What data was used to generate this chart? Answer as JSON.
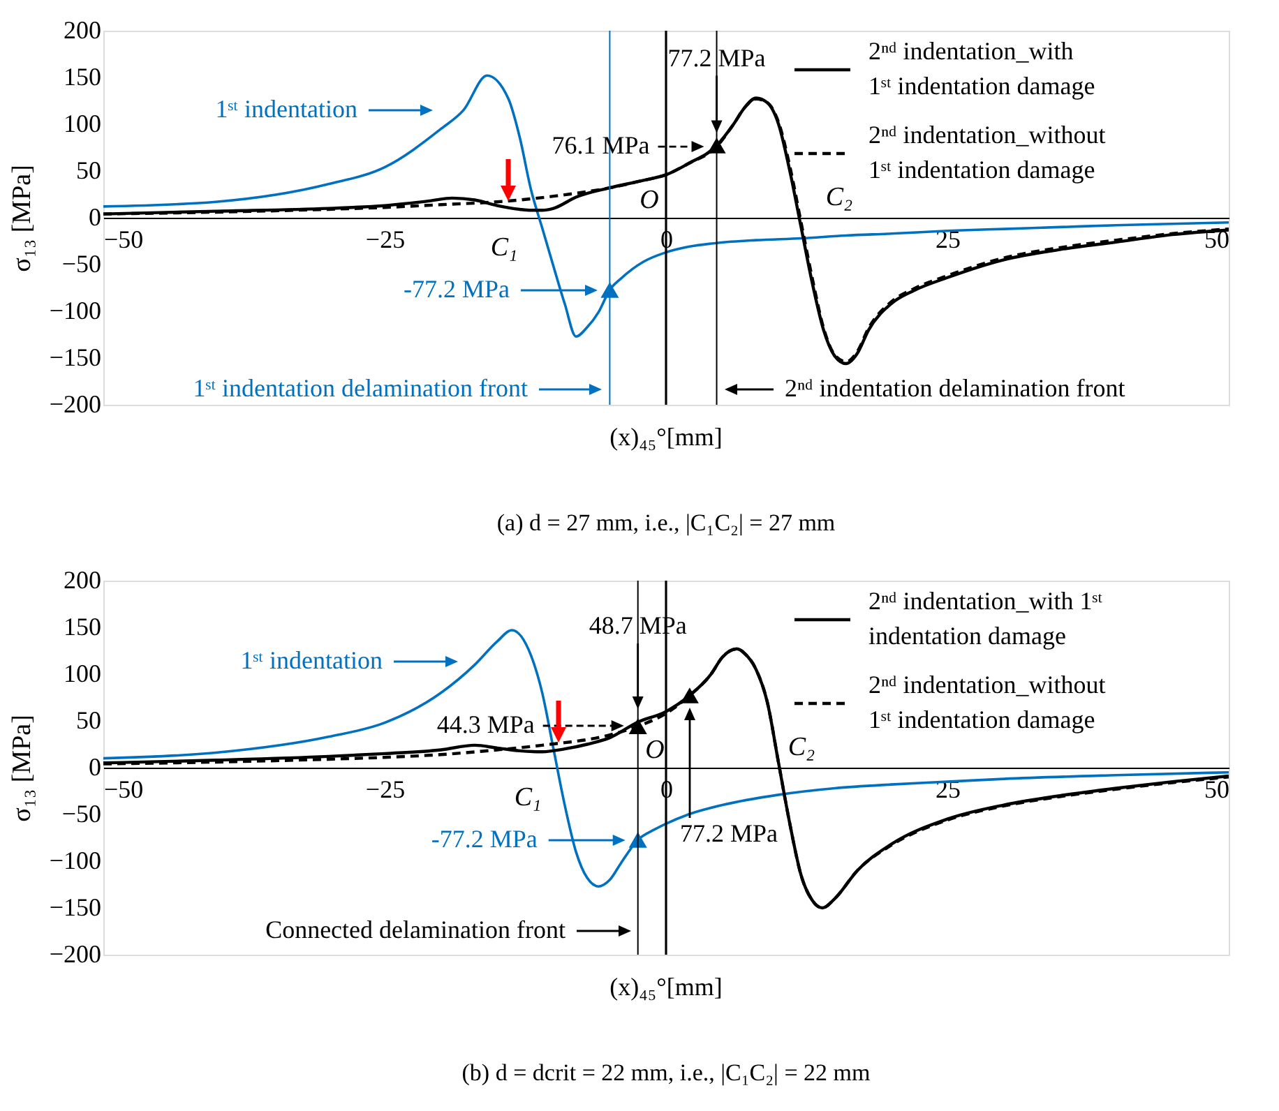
{
  "chart_data": [
    {
      "type": "line",
      "title": "(a) d = 27 mm, i.e., |C₁C₂| = 27 mm",
      "xlabel": "(x)₄₅°[mm]",
      "ylabel": "σ₁₃ [MPa]",
      "xlim": [
        -50,
        50
      ],
      "xticks": [
        -50,
        -25,
        0,
        25,
        50
      ],
      "ylim": [
        -200,
        200
      ],
      "yticks": [
        -200,
        -150,
        -100,
        -50,
        0,
        50,
        100,
        150,
        200
      ],
      "grid": false,
      "legend": "top right",
      "series": [
        {
          "type": "line",
          "color": "#0070c0",
          "line_style": "solid",
          "x": [
            -50,
            -40,
            -30,
            -25,
            -20,
            -18,
            -15.9,
            -14,
            -13,
            -12,
            -11,
            -10,
            -9,
            -8,
            -7,
            -6,
            -5,
            -4,
            -2,
            0,
            2,
            4.5,
            8,
            12,
            16,
            20,
            25,
            30,
            35,
            40,
            45,
            50
          ],
          "values": [
            12,
            17,
            36,
            54,
            95,
            115,
            152,
            127,
            86,
            30,
            -11,
            -52,
            -92,
            -127,
            -117,
            -101,
            -77.2,
            -65,
            -47,
            -37,
            -31,
            -27,
            -24,
            -22,
            -19,
            -17,
            -14,
            -12,
            -10,
            -8,
            -6.5,
            -5
          ]
        },
        {
          "type": "line",
          "name": "2ⁿᵈ indentation_with 1ˢᵗ indentation damage",
          "color": "#000000",
          "line_style": "solid",
          "x": [
            -50,
            -40,
            -30,
            -25,
            -21,
            -19,
            -17,
            -15,
            -13,
            -12,
            -11,
            -10,
            -8,
            -5,
            -2,
            0,
            2,
            4.5,
            6,
            7,
            8,
            9,
            10,
            11,
            12,
            13,
            14,
            15,
            16,
            17,
            18,
            20,
            22,
            25,
            30,
            35,
            40,
            45,
            50
          ],
          "values": [
            4,
            7,
            10,
            13,
            18,
            21,
            19,
            13,
            9,
            8,
            8,
            10,
            22,
            32,
            40,
            46,
            58,
            77.2,
            100,
            118,
            128,
            123,
            100,
            50,
            -10,
            -70,
            -120,
            -148,
            -156,
            -145,
            -120,
            -92,
            -78,
            -64,
            -45,
            -34,
            -26,
            -18,
            -13
          ]
        },
        {
          "type": "line",
          "name": "2ⁿᵈ indentation_without 1ˢᵗ indentation damage",
          "color": "#000000",
          "line_style": "dashed",
          "x": [
            -50,
            -40,
            -30,
            -25,
            -20,
            -15,
            -13,
            -10,
            -5,
            -2,
            0,
            2,
            4.5,
            6,
            7,
            8,
            9,
            10,
            11,
            12,
            13,
            14,
            15,
            16,
            17,
            18,
            20,
            22,
            25,
            30,
            35,
            40,
            45,
            50
          ],
          "values": [
            4,
            6,
            9,
            11,
            14,
            17,
            19,
            23,
            32,
            40,
            46,
            58,
            76.1,
            100,
            118,
            127,
            123,
            102,
            55,
            -5,
            -65,
            -118,
            -147,
            -154,
            -143,
            -118,
            -90,
            -76,
            -62,
            -43,
            -32,
            -24,
            -17,
            -12
          ]
        },
        {
          "type": "scatter",
          "marker": "triangle",
          "x": [
            4.5,
            -5
          ],
          "values": [
            77.2,
            -77.2
          ],
          "colors": [
            "#000000",
            "#0070c0"
          ]
        }
      ],
      "ref_lines": [
        {
          "axis": "x",
          "value": -5,
          "color": "#0070c0"
        },
        {
          "axis": "x",
          "value": 0,
          "color": "#000000"
        },
        {
          "axis": "x",
          "value": 4.5,
          "color": "#000000"
        }
      ],
      "annotations": [
        "1ˢᵗ indentation",
        "-77.2 MPa",
        {
          "text": "76.1 MPa",
          "x": 4.5,
          "y": 76.1
        },
        {
          "text": "77.2 MPa",
          "x": 4.5,
          "y": 77.2
        },
        "1ˢᵗ indentation delamination front",
        "2ⁿᵈ indentation delamination front",
        "C₁",
        "O",
        "C₂"
      ]
    },
    {
      "type": "line",
      "title": "(b) d = dcrit = 22 mm, i.e., |C₁C₂| = 22 mm",
      "xlabel": "(x)₄₅°[mm]",
      "ylabel": "σ₁₃ [MPa]",
      "xlim": [
        -50,
        50
      ],
      "xticks": [
        -50,
        -25,
        0,
        25,
        50
      ],
      "ylim": [
        -200,
        200
      ],
      "yticks": [
        -200,
        -150,
        -100,
        -50,
        0,
        50,
        100,
        150,
        200
      ],
      "grid": false,
      "legend": "top right",
      "series": [
        {
          "type": "line",
          "color": "#0070c0",
          "line_style": "solid",
          "x": [
            -50,
            -40,
            -30,
            -25,
            -20,
            -17,
            -15,
            -13.7,
            -12,
            -11,
            -10,
            -9,
            -8,
            -7,
            -6,
            -5,
            -4,
            -2.5,
            -1,
            0,
            2,
            5,
            10,
            15,
            20,
            25,
            30,
            40,
            50
          ],
          "values": [
            10,
            16,
            33,
            48,
            80,
            110,
            135,
            147,
            120,
            80,
            20,
            -40,
            -90,
            -118,
            -127,
            -120,
            -102,
            -77.2,
            -66,
            -60,
            -50,
            -40,
            -29,
            -22,
            -18,
            -15,
            -12,
            -8,
            -5
          ]
        },
        {
          "type": "line",
          "name": "2ⁿᵈ indentation_with 1ˢᵗ indentation damage",
          "color": "#000000",
          "line_style": "solid",
          "x": [
            -50,
            -40,
            -30,
            -25,
            -20,
            -17,
            -15,
            -13,
            -11,
            -9,
            -7,
            -5,
            -2.5,
            0,
            2.1,
            4,
            5,
            6.3,
            7,
            8,
            9,
            10,
            11,
            12,
            13,
            13.9,
            15,
            17,
            20,
            25,
            30,
            35,
            40,
            45,
            50
          ],
          "values": [
            5,
            8,
            12,
            15,
            19,
            24,
            21,
            18,
            17,
            20,
            25,
            32,
            48.7,
            60,
            77.2,
            100,
            118,
            127,
            122,
            105,
            70,
            5,
            -60,
            -115,
            -142,
            -150,
            -140,
            -110,
            -82,
            -55,
            -40,
            -30,
            -22,
            -15,
            -9
          ]
        },
        {
          "type": "line",
          "name": "2ⁿᵈ indentation_without 1ˢᵗ indentation damage",
          "color": "#000000",
          "line_style": "dashed",
          "x": [
            -50,
            -40,
            -30,
            -25,
            -20,
            -15,
            -11,
            -5,
            -2.5,
            0,
            2.1,
            4,
            5,
            6.3,
            7,
            8,
            9,
            10,
            11,
            12,
            13,
            13.9,
            15,
            17,
            20,
            25,
            30,
            35,
            40,
            45,
            50
          ],
          "values": [
            4,
            6,
            9,
            11,
            14,
            19,
            24,
            35,
            44.3,
            58,
            77.2,
            100,
            118,
            127,
            122,
            105,
            70,
            5,
            -60,
            -115,
            -142,
            -150,
            -140,
            -110,
            -83,
            -56,
            -41,
            -31,
            -23,
            -16,
            -10
          ]
        },
        {
          "type": "scatter",
          "marker": "triangle",
          "x": [
            -2.5,
            2.1,
            -2.5
          ],
          "values": [
            44.3,
            77.2,
            -77.2
          ],
          "colors": [
            "#000000",
            "#000000",
            "#0070c0"
          ]
        }
      ],
      "ref_lines": [
        {
          "axis": "x",
          "value": -2.5,
          "color": "#000000"
        },
        {
          "axis": "x",
          "value": 0,
          "color": "#000000"
        }
      ],
      "annotations": [
        "1ˢᵗ indentation",
        "-77.2 MPa",
        "44.3 MPa",
        "48.7 MPa",
        "77.2 MPa",
        "Connected delamination front",
        "C₁",
        "O",
        "C₂"
      ]
    }
  ]
}
